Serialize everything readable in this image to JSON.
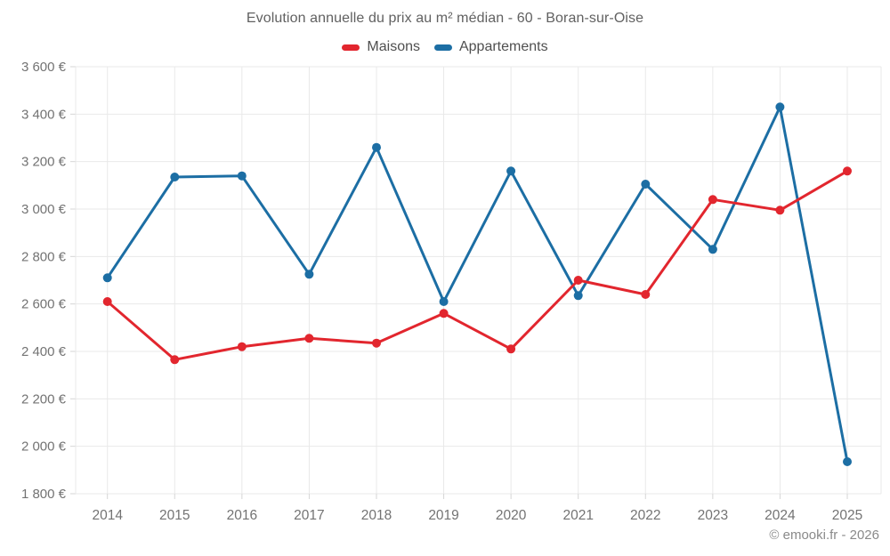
{
  "footer": {
    "copyright": "© emooki.fr - 2026"
  },
  "chart_data": {
    "type": "line",
    "title": "Evolution annuelle du prix au m² médian - 60 - Boran-sur-Oise",
    "x": [
      "2014",
      "2015",
      "2016",
      "2017",
      "2018",
      "2019",
      "2020",
      "2021",
      "2022",
      "2023",
      "2024",
      "2025"
    ],
    "series": [
      {
        "name": "Maisons",
        "color": "#e2262e",
        "values": [
          2610,
          2365,
          2420,
          2455,
          2435,
          2560,
          2410,
          2700,
          2640,
          3040,
          2995,
          3160
        ]
      },
      {
        "name": "Appartements",
        "color": "#1c6ea4",
        "values": [
          2710,
          3135,
          3140,
          2725,
          3260,
          2610,
          3160,
          2635,
          3105,
          2830,
          3430,
          1935
        ]
      }
    ],
    "y_axis": {
      "min": 1800,
      "max": 3600,
      "step": 200,
      "unit": "€",
      "tick_labels": [
        "1 800 €",
        "2 000 €",
        "2 200 €",
        "2 400 €",
        "2 600 €",
        "2 800 €",
        "3 000 €",
        "3 200 €",
        "3 400 €",
        "3 600 €"
      ]
    },
    "xlabel": "",
    "ylabel": "",
    "grid": true,
    "legend_position": "top",
    "line_width": 3,
    "marker_radius": 5,
    "grid_color": "#e9e9e9",
    "tick_color": "#d6d6d6",
    "axis_text_color": "#737373"
  }
}
